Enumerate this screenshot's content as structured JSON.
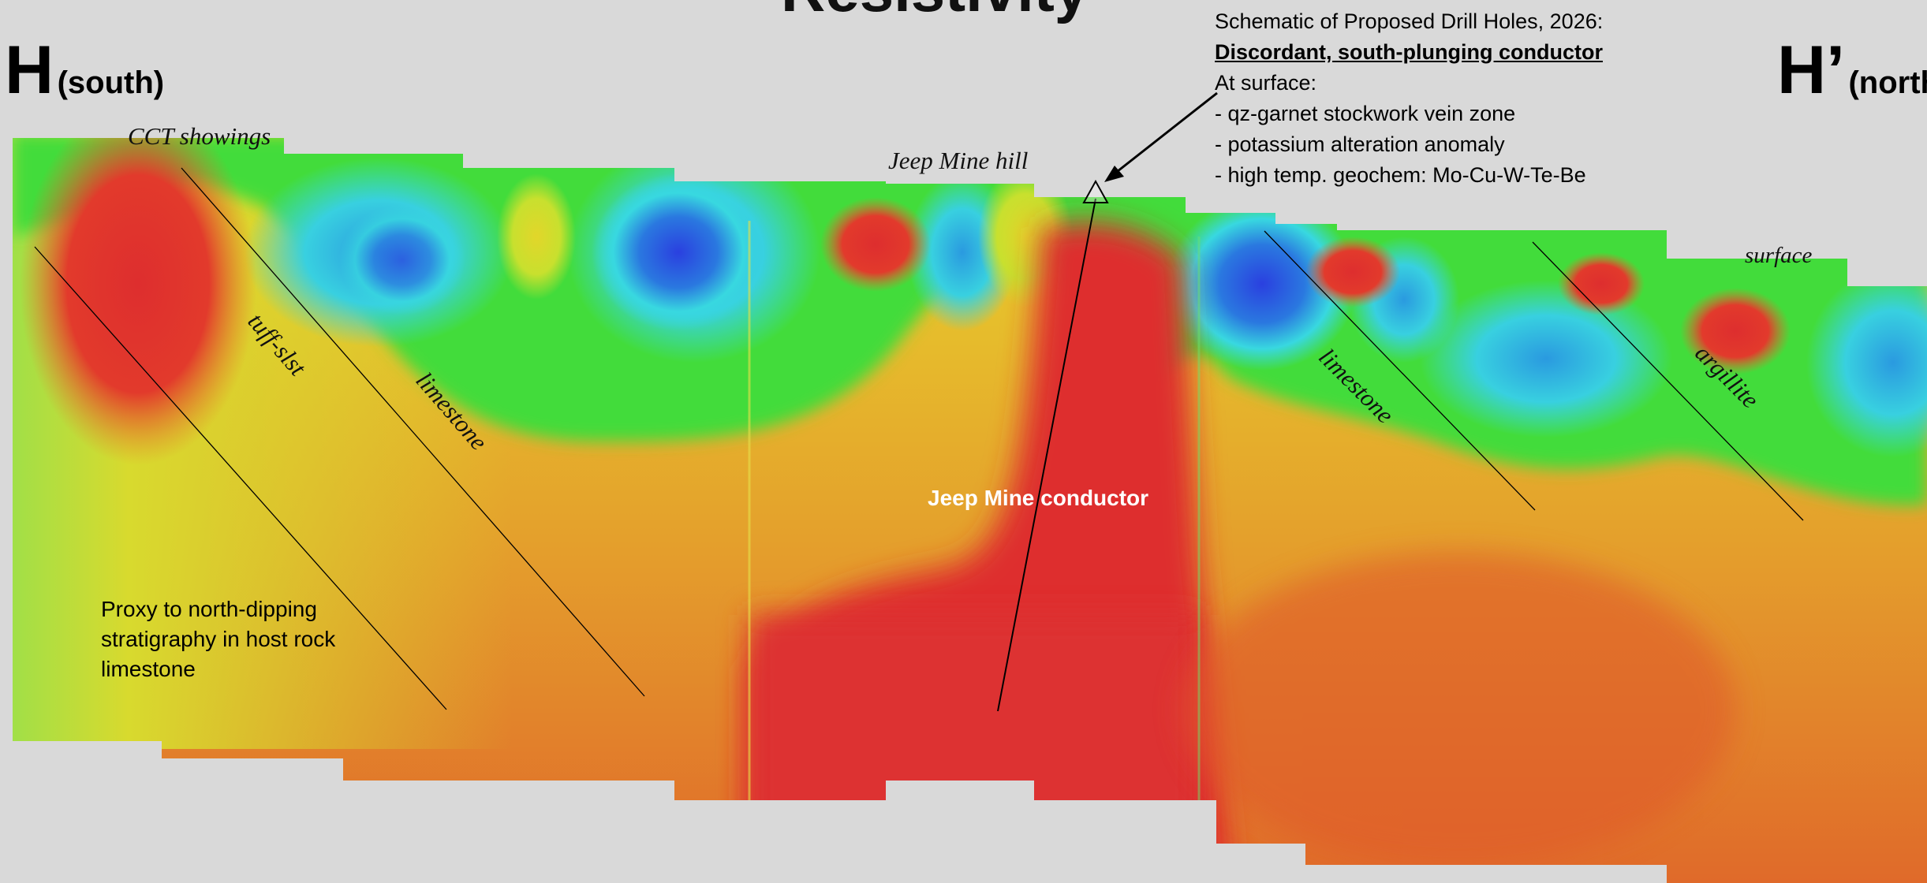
{
  "title": "Resistivity",
  "section": {
    "south_end": {
      "letter": "H",
      "direction": "(south)"
    },
    "north_end": {
      "letter": "H’",
      "direction": "(north)"
    }
  },
  "annotation": {
    "line1": "Schematic of Proposed Drill Holes, 2026:",
    "line2": "Discordant, south-plunging conductor",
    "line3": "At surface:",
    "bullets": [
      "- qz-garnet stockwork vein zone",
      "- potassium alteration anomaly",
      "- high temp. geochem: Mo-Cu-W-Te-Be"
    ]
  },
  "labels": {
    "cct_showings": "CCT showings",
    "jeep_mine_hill": "Jeep Mine hill",
    "surface": "surface",
    "tuff_slst": "tuff-slst",
    "limestone_south": "limestone",
    "limestone_north": "limestone",
    "argillite": "argillite",
    "conductor": "Jeep Mine conductor",
    "proxy_note": [
      "Proxy to north-dipping",
      "stratigraphy in host rock",
      "limestone"
    ]
  },
  "colors": {
    "background": "#d9d9d9",
    "conductive_red": "#e03030",
    "orange": "#e8702a",
    "yellow": "#e2d82a",
    "green": "#3ee03a",
    "cyan": "#38d8e0",
    "resistive_blue": "#2a50e0"
  }
}
